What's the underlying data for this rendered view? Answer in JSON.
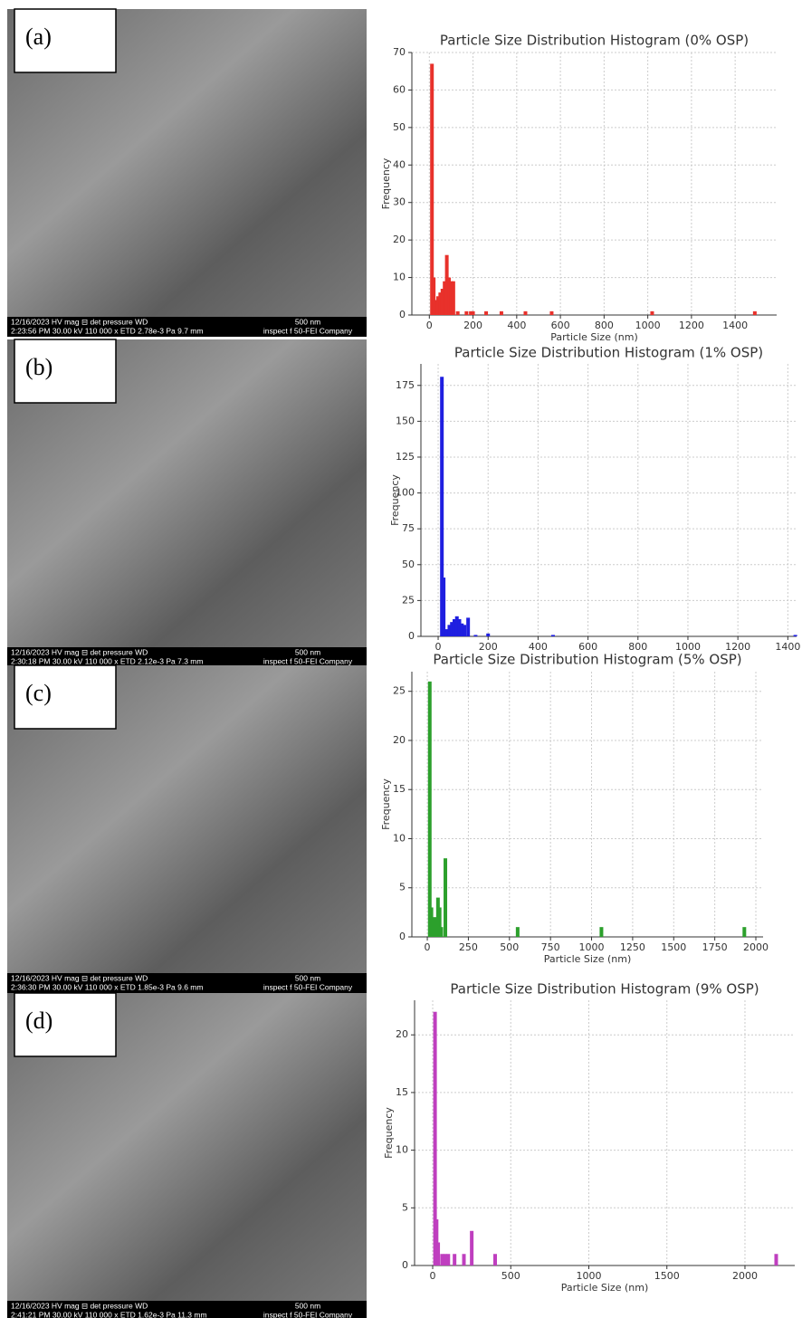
{
  "images": [
    {
      "label": "(a)",
      "info": [
        "12/16/2023   HV     mag ⊟  det  pressure   WD",
        "2:23:56 PM 30.00 kV 110 000 x ETD 2.78e-3 Pa 9.7 mm",
        "500 nm",
        "inspect f 50-FEI Company"
      ]
    },
    {
      "label": "(b)",
      "info": [
        "12/16/2023   HV     mag ⊟  det  pressure   WD",
        "2:30:18 PM 30.00 kV 110 000 x ETD 2.12e-3 Pa 7.3 mm",
        "500 nm",
        "inspect f 50-FEI Company"
      ]
    },
    {
      "label": "(c)",
      "info": [
        "12/16/2023   HV     mag ⊟  det  pressure   WD",
        "2:36:30 PM 30.00 kV 110 000 x ETD 1.85e-3 Pa 9.6 mm",
        "500 nm",
        "inspect f 50-FEI Company"
      ]
    },
    {
      "label": "(d)",
      "info": [
        "12/16/2023   HV     mag ⊟  det  pressure   WD",
        "2:41:21 PM 30.00 kV 110 000 x ETD 1.62e-3 Pa 11.3 mm",
        "500 nm",
        "inspect f 50-FEI Company"
      ]
    }
  ],
  "chart_data": [
    {
      "type": "bar",
      "title": "Particle Size Distribution Histogram (0% OSP)",
      "x_label": "Particle Size (nm)",
      "y_label": "Frequency",
      "color": "#e8312b",
      "grid": true,
      "x": [
        12,
        20,
        30,
        40,
        50,
        60,
        70,
        80,
        90,
        100,
        110,
        130,
        170,
        190,
        200,
        260,
        330,
        440,
        560,
        1020,
        1490
      ],
      "values": [
        67,
        10,
        4,
        5,
        6,
        7,
        9,
        16,
        10,
        9,
        9,
        1,
        1,
        1,
        1,
        1,
        1,
        1,
        1,
        1,
        1
      ],
      "xlim": [
        -80,
        1590
      ],
      "xticks": [
        0,
        200,
        400,
        600,
        800,
        1000,
        1200,
        1400
      ],
      "ylim": [
        0,
        70
      ],
      "yticks": [
        0,
        10,
        20,
        30,
        40,
        50,
        60,
        70
      ]
    },
    {
      "type": "bar",
      "title": "Particle Size Distribution Histogram (1% OSP)",
      "y_label": "Frequency",
      "color": "#1f1fe0",
      "grid": true,
      "x": [
        15,
        22,
        35,
        45,
        55,
        65,
        75,
        85,
        95,
        105,
        120,
        150,
        200,
        460,
        1430
      ],
      "values": [
        181,
        41,
        5,
        8,
        10,
        12,
        14,
        12,
        9,
        8,
        13,
        1,
        2,
        1,
        1
      ],
      "xlim": [
        -69,
        1435
      ],
      "xticks": [
        0,
        200,
        400,
        600,
        800,
        1000,
        1200,
        1400
      ],
      "ylim": [
        0,
        190
      ],
      "yticks": [
        0,
        25,
        50,
        75,
        100,
        125,
        150,
        175
      ]
    },
    {
      "type": "bar",
      "title": "Particle Size Distribution Histogram (5% OSP)",
      "x_label": "Particle Size (nm)",
      "y_label": "Frequency",
      "color": "#2ca02c",
      "grid": true,
      "x": [
        15,
        25,
        35,
        45,
        55,
        65,
        75,
        85,
        110,
        550,
        1060,
        1930
      ],
      "values": [
        26,
        3,
        2,
        2,
        2,
        4,
        3,
        1,
        8,
        1,
        1,
        1
      ],
      "xlim": [
        -94,
        2044
      ],
      "xticks": [
        0,
        250,
        500,
        750,
        1000,
        1250,
        1500,
        1750,
        2000
      ],
      "ylim": [
        0,
        27
      ],
      "yticks": [
        0,
        5,
        10,
        15,
        20,
        25
      ]
    },
    {
      "type": "bar",
      "title": "Particle Size Distribution Histogram (9% OSP)",
      "x_label": "Particle Size (nm)",
      "y_label": "Frequency",
      "color": "#bf3fbf",
      "grid": true,
      "x": [
        15,
        25,
        35,
        60,
        80,
        100,
        140,
        200,
        250,
        400,
        2200
      ],
      "values": [
        22,
        4,
        2,
        1,
        1,
        1,
        1,
        1,
        3,
        1,
        1
      ],
      "xlim": [
        -116,
        2319
      ],
      "xticks": [
        0,
        500,
        1000,
        1500,
        2000
      ],
      "ylim": [
        0,
        23
      ],
      "yticks": [
        0,
        5,
        10,
        15,
        20
      ]
    }
  ]
}
